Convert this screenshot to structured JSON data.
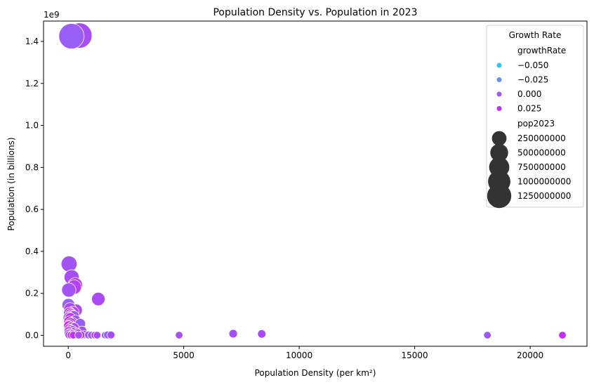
{
  "chart_data": {
    "type": "scatter",
    "title": "Population Density vs. Population in 2023",
    "xlabel": "Population Density (per km²)",
    "ylabel": "Population (in billions)",
    "y_offset_label": "1e9",
    "xlim": [
      -1070,
      22460
    ],
    "ylim": [
      -0.052,
      1.497
    ],
    "x_ticks": [
      0,
      5000,
      10000,
      15000,
      20000
    ],
    "x_tick_labels": [
      "0",
      "5000",
      "10000",
      "15000",
      "20000"
    ],
    "y_ticks": [
      0.0,
      0.2,
      0.4,
      0.6,
      0.8,
      1.0,
      1.2,
      1.4
    ],
    "y_tick_labels": [
      "0.0",
      "0.2",
      "0.4",
      "0.6",
      "0.8",
      "1.0",
      "1.2",
      "1.4"
    ],
    "grid": false,
    "legend": {
      "title": "Growth Rate",
      "placement": "top-right",
      "hue_title": "growthRate",
      "hue_entries": [
        {
          "label": "−0.050",
          "color": "#36c5f0"
        },
        {
          "label": "−0.025",
          "color": "#6b8ff0"
        },
        {
          "label": "0.000",
          "color": "#9b5cf3"
        },
        {
          "label": "0.025",
          "color": "#c42ef5"
        }
      ],
      "size_title": "pop2023",
      "size_entries": [
        {
          "label": "250000000",
          "value": 250000000
        },
        {
          "label": "500000000",
          "value": 500000000
        },
        {
          "label": "750000000",
          "value": 750000000
        },
        {
          "label": "1000000000",
          "value": 1000000000
        },
        {
          "label": "1250000000",
          "value": 1250000000
        }
      ]
    },
    "points": [
      {
        "x": 480,
        "y": 1.428,
        "g": 0.008
      },
      {
        "x": 140,
        "y": 1.425,
        "g": -0.001
      },
      {
        "x": 38,
        "y": 0.34,
        "g": 0.005
      },
      {
        "x": 150,
        "y": 0.277,
        "g": 0.007
      },
      {
        "x": 300,
        "y": 0.24,
        "g": 0.019
      },
      {
        "x": 260,
        "y": 0.23,
        "g": 0.016
      },
      {
        "x": 25,
        "y": 0.216,
        "g": 0.005
      },
      {
        "x": 1300,
        "y": 0.173,
        "g": 0.01
      },
      {
        "x": 10,
        "y": 0.145,
        "g": -0.003
      },
      {
        "x": 340,
        "y": 0.12,
        "g": 0.011
      },
      {
        "x": 80,
        "y": 0.126,
        "g": 0.01
      },
      {
        "x": 200,
        "y": 0.11,
        "g": 0.015
      },
      {
        "x": 60,
        "y": 0.106,
        "g": 0.025
      },
      {
        "x": 120,
        "y": 0.1,
        "g": 0.02
      },
      {
        "x": 160,
        "y": 0.094,
        "g": -0.005
      },
      {
        "x": 230,
        "y": 0.09,
        "g": 0.004
      },
      {
        "x": 30,
        "y": 0.084,
        "g": -0.006
      },
      {
        "x": 90,
        "y": 0.08,
        "g": 0.021
      },
      {
        "x": 310,
        "y": 0.07,
        "g": 0.005
      },
      {
        "x": 50,
        "y": 0.066,
        "g": 0.028
      },
      {
        "x": 180,
        "y": 0.06,
        "g": 0.019
      },
      {
        "x": 100,
        "y": 0.058,
        "g": 0.024
      },
      {
        "x": 520,
        "y": 0.055,
        "g": -0.001
      },
      {
        "x": 70,
        "y": 0.05,
        "g": 0.014
      },
      {
        "x": 20,
        "y": 0.045,
        "g": 0.03
      },
      {
        "x": 140,
        "y": 0.04,
        "g": 0.022
      },
      {
        "x": 250,
        "y": 0.036,
        "g": 0.011
      },
      {
        "x": 40,
        "y": 0.032,
        "g": 0.018
      },
      {
        "x": 110,
        "y": 0.028,
        "g": 0.025
      },
      {
        "x": 190,
        "y": 0.024,
        "g": -0.004
      },
      {
        "x": 600,
        "y": 0.022,
        "g": 0.006
      },
      {
        "x": 15,
        "y": 0.02,
        "g": 0.012
      },
      {
        "x": 280,
        "y": 0.017,
        "g": 0.026
      },
      {
        "x": 380,
        "y": 0.014,
        "g": 0.015
      },
      {
        "x": 60,
        "y": 0.012,
        "g": 0.008
      },
      {
        "x": 420,
        "y": 0.01,
        "g": 0.002
      },
      {
        "x": 5,
        "y": 0.008,
        "g": -0.002
      },
      {
        "x": 160,
        "y": 0.006,
        "g": 0.018
      },
      {
        "x": 700,
        "y": 0.004,
        "g": 0.009
      },
      {
        "x": 330,
        "y": 0.003,
        "g": 0.024
      },
      {
        "x": 30,
        "y": 0.002,
        "g": 0.004
      },
      {
        "x": 560,
        "y": 0.002,
        "g": 0.012
      },
      {
        "x": 880,
        "y": 0.002,
        "g": 0.004
      },
      {
        "x": 1000,
        "y": 0.001,
        "g": -0.003
      },
      {
        "x": 1150,
        "y": 0.001,
        "g": 0.018
      },
      {
        "x": 1250,
        "y": 0.001,
        "g": 0.01
      },
      {
        "x": 1600,
        "y": 0.001,
        "g": -0.002
      },
      {
        "x": 1700,
        "y": 0.002,
        "g": -0.004
      },
      {
        "x": 1850,
        "y": 0.002,
        "g": 0.008
      },
      {
        "x": 120,
        "y": 0.001,
        "g": 0.02
      },
      {
        "x": 220,
        "y": 0.001,
        "g": 0.026
      },
      {
        "x": 450,
        "y": 0.001,
        "g": 0.011
      },
      {
        "x": 4800,
        "y": 0.001,
        "g": 0.006
      },
      {
        "x": 7140,
        "y": 0.008,
        "g": 0.007
      },
      {
        "x": 8380,
        "y": 0.007,
        "g": 0.01
      },
      {
        "x": 18150,
        "y": 0.001,
        "g": 0.001
      },
      {
        "x": 21400,
        "y": 0.001,
        "g": 0.025
      }
    ]
  }
}
